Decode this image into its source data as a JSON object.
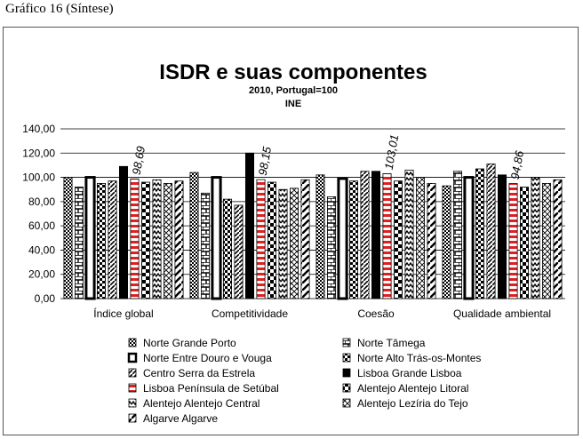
{
  "caption": "Gráfico 16 (Síntese)",
  "chart_data": {
    "type": "bar",
    "title": "ISDR e suas componentes",
    "subtitle": "2010, Portugal=100",
    "subtitle2": "INE",
    "xlabel": "",
    "ylabel": "",
    "ylim": [
      0,
      140
    ],
    "yticks": [
      "0,00",
      "20,00",
      "40,00",
      "60,00",
      "80,00",
      "100,00",
      "120,00",
      "140,00"
    ],
    "grid": true,
    "legend_position": "bottom",
    "categories": [
      "Índice global",
      "Competitividade",
      "Coesão",
      "Qualidade ambiental"
    ],
    "series": [
      {
        "name": "Norte Grande Porto",
        "pattern": "dots",
        "values": [
          100,
          104,
          102,
          93
        ]
      },
      {
        "name": "Norte Tâmega",
        "pattern": "bricks",
        "values": [
          92,
          87,
          84,
          105
        ]
      },
      {
        "name": "Norte Entre Douro e Vouga",
        "pattern": "hollow",
        "values": [
          100,
          100,
          99,
          100
        ]
      },
      {
        "name": "Norte Alto Trás-os-Montes",
        "pattern": "checker",
        "values": [
          95,
          82,
          97,
          107
        ]
      },
      {
        "name": "Centro Serra da Estrela",
        "pattern": "diag",
        "values": [
          97,
          77,
          105,
          111
        ]
      },
      {
        "name": "Lisboa Grande Lisboa",
        "pattern": "solid",
        "values": [
          109,
          120,
          105,
          102
        ]
      },
      {
        "name": "Lisboa Península de Setúbal",
        "pattern": "redbar",
        "values": [
          98.69,
          98.15,
          103.01,
          94.86
        ]
      },
      {
        "name": "Alentejo Alentejo Litoral",
        "pattern": "bigchecker",
        "values": [
          96,
          96,
          97,
          92
        ]
      },
      {
        "name": "Alentejo Alentejo Central",
        "pattern": "zigzag",
        "values": [
          98,
          90,
          106,
          100
        ]
      },
      {
        "name": "Alentejo Lezíria do Tejo",
        "pattern": "hatch",
        "values": [
          95,
          91,
          100,
          95
        ]
      },
      {
        "name": "Algarve Algarve",
        "pattern": "diagwhite",
        "values": [
          97,
          98,
          95,
          98
        ]
      }
    ],
    "data_labels": [
      {
        "category": 0,
        "series": 6,
        "text": "98,69"
      },
      {
        "category": 1,
        "series": 6,
        "text": "98,15"
      },
      {
        "category": 2,
        "series": 6,
        "text": "103,01"
      },
      {
        "category": 3,
        "series": 6,
        "text": "94,86"
      }
    ]
  }
}
